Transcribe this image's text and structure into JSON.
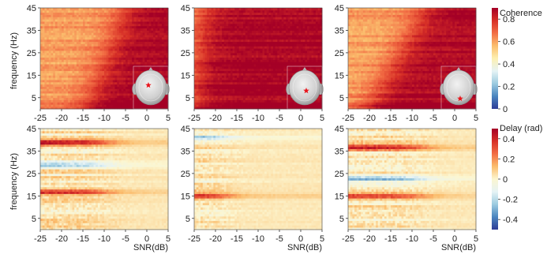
{
  "chart_data": [
    {
      "type": "heatmap",
      "measure": "Coherence",
      "panels": [
        {
          "marker": "head-marker-left-central",
          "boundary_snr_low_freq": -14,
          "boundary_snr_high_freq": -5
        },
        {
          "marker": "head-marker-right-central",
          "boundary_snr_low_freq": -25,
          "boundary_snr_high_freq": -23
        },
        {
          "marker": "head-marker-right-posterior",
          "boundary_snr_low_freq": -20,
          "boundary_snr_high_freq": -7
        }
      ],
      "xlabel": "SNR(dB)",
      "ylabel": "frequency (Hz)",
      "xlim": [
        -25,
        5
      ],
      "ylim": [
        0,
        45
      ],
      "xticks": [
        "-25",
        "-20",
        "-15",
        "-10",
        "-5",
        "0",
        "5"
      ],
      "yticks": [
        "5",
        "15",
        "25",
        "35",
        "45"
      ],
      "colorbar": {
        "label": "Coherence",
        "range": [
          0,
          0.9
        ],
        "ticks": [
          "0.8",
          "0.6",
          "0.4",
          "0.2",
          "0"
        ]
      }
    },
    {
      "type": "heatmap",
      "measure": "Delay (rad)",
      "panels": [
        {
          "strong_bands_hz": [
            17,
            29,
            39
          ],
          "low_snr_extent": -10
        },
        {
          "strong_bands_hz": [
            15,
            41
          ],
          "low_snr_extent": -18
        },
        {
          "strong_bands_hz": [
            15,
            23,
            37
          ],
          "low_snr_extent": -8
        }
      ],
      "xlabel": "SNR(dB)",
      "ylabel": "frequency (Hz)",
      "xlim": [
        -25,
        5
      ],
      "ylim": [
        0,
        45
      ],
      "xticks": [
        "-25",
        "-20",
        "-15",
        "-10",
        "-5",
        "0",
        "5"
      ],
      "yticks": [
        "5",
        "15",
        "25",
        "35",
        "45"
      ],
      "colorbar": {
        "label": "Delay (rad)",
        "range": [
          -0.5,
          0.5
        ],
        "ticks": [
          "0.4",
          "0.2",
          "0",
          "-0.2",
          "-0.4"
        ]
      }
    }
  ],
  "colors": {
    "coherence_scale": [
      "#2d3c96",
      "#4a85bf",
      "#9ccbe0",
      "#e6f3f5",
      "#fdf0b0",
      "#fbbd6d",
      "#f26d44",
      "#d73027",
      "#a50026"
    ],
    "delay_scale": [
      "#2d3c96",
      "#4a85bf",
      "#9ccbe0",
      "#e6f3f5",
      "#fcf6d0",
      "#fbbd6d",
      "#f26d44",
      "#d73027",
      "#a50026"
    ],
    "marker": "#e8141b"
  }
}
